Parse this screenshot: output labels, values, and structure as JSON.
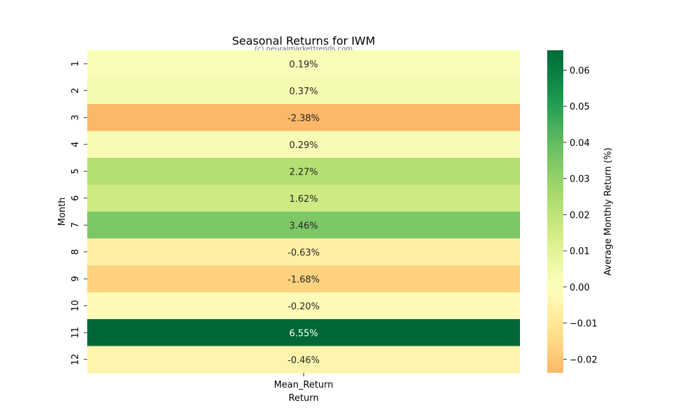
{
  "chart_data": {
    "type": "heatmap",
    "title": "Seasonal Returns for IWM",
    "watermark": "(c) neuralmarkettrends.com",
    "xlabel": "Return",
    "ylabel": "Month",
    "x_categories": [
      "Mean_Return"
    ],
    "y_categories": [
      "1",
      "2",
      "3",
      "4",
      "5",
      "6",
      "7",
      "8",
      "9",
      "10",
      "11",
      "12"
    ],
    "values": [
      0.0019,
      0.0037,
      -0.0238,
      0.0029,
      0.0227,
      0.0162,
      0.0346,
      -0.0063,
      -0.0168,
      -0.002,
      0.0655,
      -0.0046
    ],
    "cell_labels": [
      "0.19%",
      "0.37%",
      "-2.38%",
      "0.29%",
      "2.27%",
      "1.62%",
      "3.46%",
      "-0.63%",
      "-1.68%",
      "-0.20%",
      "6.55%",
      "-0.46%"
    ],
    "colorbar": {
      "label": "Average Monthly Return (%)",
      "range": [
        -0.0238,
        0.0655
      ],
      "center": 0,
      "colormap": "RdYlGn",
      "ticks": [
        -0.02,
        -0.01,
        0.0,
        0.01,
        0.02,
        0.03,
        0.04,
        0.05,
        0.06
      ],
      "tick_labels": [
        "−0.02",
        "−0.01",
        "0.00",
        "0.01",
        "0.02",
        "0.03",
        "0.04",
        "0.05",
        "0.06"
      ]
    }
  }
}
